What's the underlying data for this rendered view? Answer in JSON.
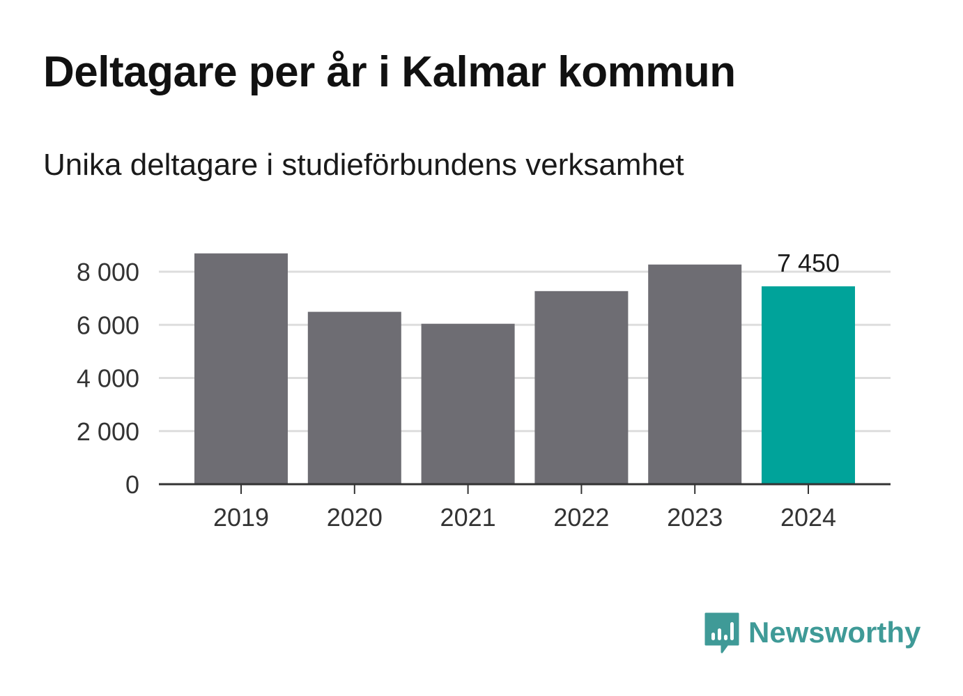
{
  "chart_data": {
    "type": "bar",
    "title": "Deltagare per år i Kalmar kommun",
    "subtitle": "Unika deltagare i studieförbundens verksamhet",
    "categories": [
      "2019",
      "2020",
      "2021",
      "2022",
      "2023",
      "2024"
    ],
    "values": [
      8690,
      6490,
      6040,
      7270,
      8270,
      7450
    ],
    "highlight_index": 5,
    "data_label": "7 450",
    "ylim": [
      0,
      8000
    ],
    "yticks": [
      0,
      2000,
      4000,
      6000,
      8000
    ],
    "ytick_labels": [
      "0",
      "2 000",
      "4 000",
      "6 000",
      "8 000"
    ],
    "grid": true,
    "colors": {
      "bar": "#6e6d73",
      "highlight": "#00a39a",
      "grid": "#dddddd",
      "axis": "#333333"
    }
  },
  "brand": {
    "name": "Newsworthy",
    "icon": "newsworthy-logo-icon",
    "color": "#3f9a97"
  }
}
